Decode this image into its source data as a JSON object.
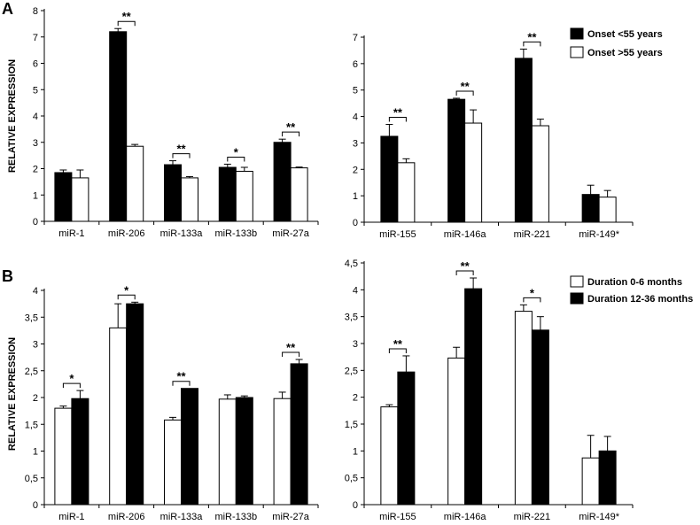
{
  "colors": {
    "onset_lt55": "#000000",
    "onset_gt55": "#ffffff",
    "dur_0_6": "#ffffff",
    "dur_12_36": "#000000",
    "axis": "#000000"
  },
  "chart_data": [
    {
      "id": "A-left",
      "panel_label": "A",
      "type": "bar",
      "ylabel": "RELATIVE EXPRESSION",
      "ylim": [
        0,
        8
      ],
      "yticks": [
        "0",
        "1",
        "2",
        "3",
        "4",
        "5",
        "6",
        "7",
        "8"
      ],
      "categories": [
        "miR-1",
        "miR-206",
        "miR-133a",
        "miR-133b",
        "miR-27a"
      ],
      "series": [
        {
          "name": "Onset <55 years",
          "color": "#000000",
          "values": [
            1.85,
            7.2,
            2.15,
            2.05,
            3.0
          ],
          "errors": [
            0.1,
            0.12,
            0.15,
            0.12,
            0.12
          ]
        },
        {
          "name": "Onset >55 years",
          "color": "#ffffff",
          "values": [
            1.65,
            2.85,
            1.65,
            1.9,
            2.03
          ],
          "errors": [
            0.3,
            0.07,
            0.05,
            0.15,
            0.03
          ]
        }
      ],
      "significance": [
        "",
        "**",
        "**",
        "*",
        "**"
      ]
    },
    {
      "id": "A-right",
      "panel_label": "",
      "type": "bar",
      "ylim": [
        0,
        7
      ],
      "yticks": [
        "0",
        "1",
        "2",
        "3",
        "4",
        "5",
        "6",
        "7"
      ],
      "categories": [
        "miR-155",
        "miR-146a",
        "miR-221",
        "miR-149*"
      ],
      "series": [
        {
          "name": "Onset <55 years",
          "color": "#000000",
          "values": [
            3.25,
            4.65,
            6.2,
            1.05
          ],
          "errors": [
            0.45,
            0.04,
            0.35,
            0.35
          ]
        },
        {
          "name": "Onset >55 years",
          "color": "#ffffff",
          "values": [
            2.25,
            3.75,
            3.65,
            0.95
          ],
          "errors": [
            0.15,
            0.5,
            0.25,
            0.25
          ]
        }
      ],
      "significance": [
        "**",
        "**",
        "**",
        ""
      ],
      "legend": {
        "placement": "top-right",
        "entries": [
          {
            "label": "Onset <55 years",
            "color": "#000000"
          },
          {
            "label": "Onset >55 years",
            "color": "#ffffff"
          }
        ]
      }
    },
    {
      "id": "B-left",
      "panel_label": "B",
      "type": "bar",
      "ylabel": "RELATIVE EXPRESSION",
      "ylim": [
        0,
        4
      ],
      "yticks": [
        "0",
        "0,5",
        "1",
        "1,5",
        "2",
        "2,5",
        "3",
        "3,5",
        "4"
      ],
      "categories": [
        "miR-1",
        "miR-206",
        "miR-133a",
        "miR-133b",
        "miR-27a"
      ],
      "series": [
        {
          "name": "Duration 0-6 months",
          "color": "#ffffff",
          "values": [
            1.8,
            3.3,
            1.58,
            1.97,
            1.98
          ],
          "errors": [
            0.04,
            0.45,
            0.05,
            0.08,
            0.12
          ]
        },
        {
          "name": "Duration 12-36 months",
          "color": "#000000",
          "values": [
            1.98,
            3.75,
            2.17,
            2.0,
            2.63
          ],
          "errors": [
            0.15,
            0.03,
            0.0,
            0.03,
            0.08
          ]
        }
      ],
      "significance": [
        "*",
        "*",
        "**",
        "",
        "**"
      ]
    },
    {
      "id": "B-right",
      "panel_label": "",
      "type": "bar",
      "ylim": [
        0,
        4.5
      ],
      "yticks": [
        "0",
        "0,5",
        "1",
        "1,5",
        "2",
        "2,5",
        "3",
        "3,5",
        "4",
        "4,5"
      ],
      "categories": [
        "miR-155",
        "miR-146a",
        "miR-221",
        "miR-149*"
      ],
      "series": [
        {
          "name": "Duration 0-6 months",
          "color": "#ffffff",
          "values": [
            1.82,
            2.73,
            3.6,
            0.87
          ],
          "errors": [
            0.04,
            0.2,
            0.12,
            0.42
          ]
        },
        {
          "name": "Duration 12-36 months",
          "color": "#000000",
          "values": [
            2.47,
            4.02,
            3.25,
            1.0
          ],
          "errors": [
            0.3,
            0.2,
            0.25,
            0.27
          ]
        }
      ],
      "significance": [
        "**",
        "**",
        "*",
        ""
      ],
      "legend": {
        "placement": "top-right",
        "entries": [
          {
            "label": "Duration 0-6 months",
            "color": "#ffffff"
          },
          {
            "label": "Duration 12-36 months",
            "color": "#000000"
          }
        ]
      }
    }
  ]
}
